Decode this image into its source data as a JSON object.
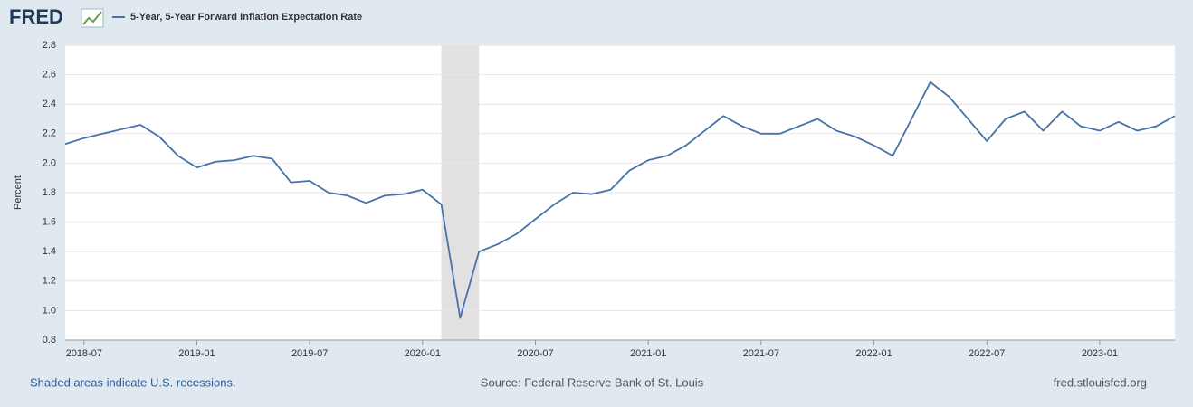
{
  "logo": "FRED",
  "chart_data": {
    "type": "line",
    "series": [
      {
        "name": "5-Year, 5-Year Forward Inflation Expectation Rate",
        "color": "#4572a7",
        "values": [
          2.13,
          2.17,
          2.2,
          2.23,
          2.26,
          2.18,
          2.05,
          1.97,
          2.01,
          2.02,
          2.05,
          2.03,
          1.87,
          1.88,
          1.8,
          1.78,
          1.73,
          1.78,
          1.79,
          1.82,
          1.72,
          0.95,
          1.4,
          1.45,
          1.52,
          1.62,
          1.72,
          1.8,
          1.79,
          1.82,
          1.95,
          2.02,
          2.05,
          2.12,
          2.22,
          2.32,
          2.25,
          2.2,
          2.2,
          2.25,
          2.3,
          2.22,
          2.18,
          2.12,
          2.05,
          2.3,
          2.55,
          2.45,
          2.3,
          2.15,
          2.3,
          2.35,
          2.22,
          2.35,
          2.25,
          2.22,
          2.28,
          2.22,
          2.25,
          2.32
        ]
      }
    ],
    "x": [
      "2018-06",
      "2018-07",
      "2018-08",
      "2018-09",
      "2018-10",
      "2018-11",
      "2018-12",
      "2019-01",
      "2019-02",
      "2019-03",
      "2019-04",
      "2019-05",
      "2019-06",
      "2019-07",
      "2019-08",
      "2019-09",
      "2019-10",
      "2019-11",
      "2019-12",
      "2020-01",
      "2020-02",
      "2020-03",
      "2020-04",
      "2020-05",
      "2020-06",
      "2020-07",
      "2020-08",
      "2020-09",
      "2020-10",
      "2020-11",
      "2020-12",
      "2021-01",
      "2021-02",
      "2021-03",
      "2021-04",
      "2021-05",
      "2021-06",
      "2021-07",
      "2021-08",
      "2021-09",
      "2021-10",
      "2021-11",
      "2021-12",
      "2022-01",
      "2022-02",
      "2022-03",
      "2022-04",
      "2022-05",
      "2022-06",
      "2022-07",
      "2022-08",
      "2022-09",
      "2022-10",
      "2022-11",
      "2022-12",
      "2023-01",
      "2023-02",
      "2023-03",
      "2023-04",
      "2023-05"
    ],
    "xlim": [
      "2018-06",
      "2023-05"
    ],
    "xticks": [
      "2018-07",
      "2019-01",
      "2019-07",
      "2020-01",
      "2020-07",
      "2021-01",
      "2021-07",
      "2022-01",
      "2022-07",
      "2023-01"
    ],
    "ylim": [
      0.8,
      2.8
    ],
    "yticks": [
      0.8,
      {
        "value": 1,
        "label": "1.0"
      },
      1.2,
      1.4,
      1.6,
      1.8,
      {
        "value": 2,
        "label": "2.0"
      },
      2.2,
      2.4,
      2.6,
      2.8
    ],
    "ylabel": "Percent",
    "grid": true,
    "recessions": [
      {
        "start": "2020-02",
        "end": "2020-04"
      }
    ],
    "note": "Shaded areas indicate U.S. recessions.",
    "source": "Source: Federal Reserve Bank of St. Louis",
    "site": "fred.stlouisfed.org"
  }
}
